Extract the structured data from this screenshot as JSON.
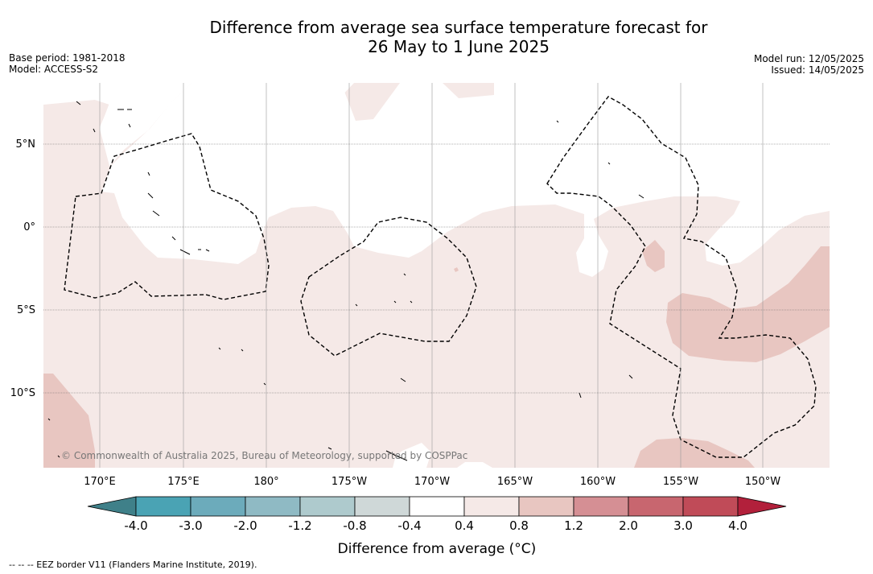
{
  "title": {
    "line1": "Difference from average sea surface temperature forecast for",
    "line2": "26 May to 1 June 2025"
  },
  "meta": {
    "base_period": "Base period: 1981-2018",
    "model": "Model: ACCESS-S2",
    "model_run": "Model run: 12/05/2025",
    "issued": "Issued: 14/05/2025"
  },
  "map": {
    "lon_labels": [
      "170°E",
      "175°E",
      "180°",
      "175°W",
      "170°W",
      "165°W",
      "160°W",
      "155°W",
      "150°W"
    ],
    "lat_labels": [
      "5°N",
      "0°",
      "5°S",
      "10°S"
    ],
    "lon_range": [
      166.6,
      213.9
    ],
    "lat_range": [
      -14.4,
      8.7
    ],
    "copyright": "© Commonwealth of Australia 2025, Bureau of Meteorology, supported by COSPPac"
  },
  "legend": {
    "title": "Difference from average (°C)",
    "tick_labels": [
      "-4.0",
      "-3.0",
      "-2.0",
      "-1.2",
      "-0.8",
      "-0.4",
      "0.4",
      "0.8",
      "1.2",
      "2.0",
      "3.0",
      "4.0"
    ],
    "colors": [
      "#3f8089",
      "#4aa3b4",
      "#6cabbb",
      "#8fbac4",
      "#aecacd",
      "#cfd8d8",
      "#ffffff",
      "#f5e9e7",
      "#e8c6c1",
      "#d58f94",
      "#c8666f",
      "#c04b58",
      "#b2203b"
    ]
  },
  "colors": {
    "anomaly_04_08": "#f5e9e7",
    "anomaly_08_12": "#e8c6c1",
    "anomaly_12_20": "#d58f94"
  },
  "footnote": "-- -- -- EEZ border V11 (Flanders Marine Institute, 2019)."
}
